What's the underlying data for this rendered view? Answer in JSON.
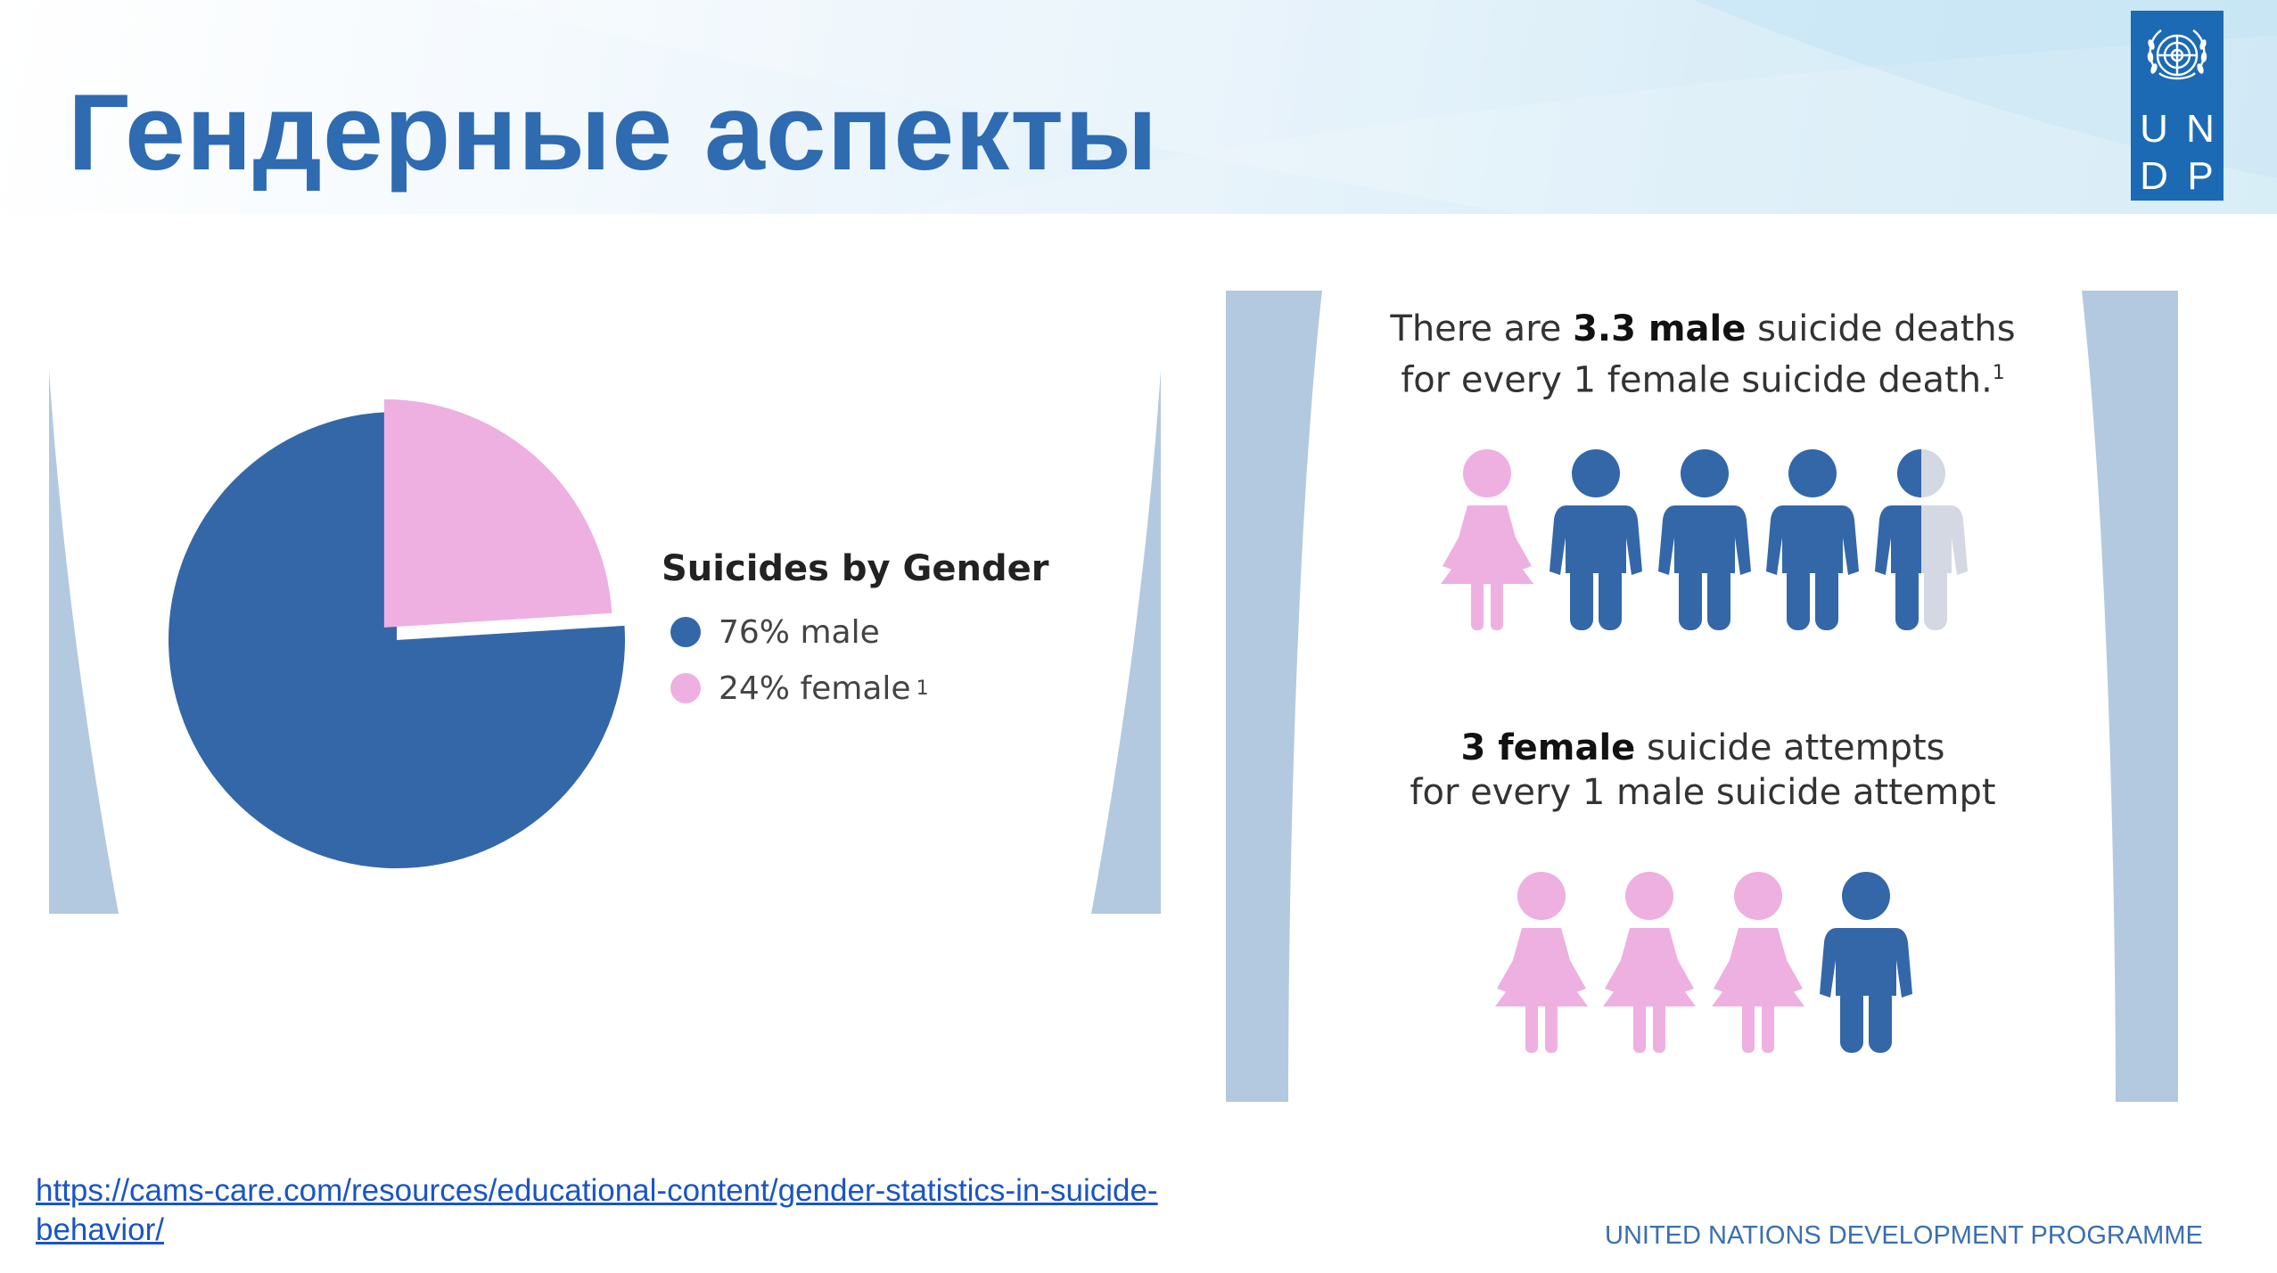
{
  "header": {
    "title": "Гендерные аспекты",
    "logo_letters": [
      "U",
      "N",
      "D",
      "P"
    ]
  },
  "colors": {
    "male": "#3467a8",
    "female": "#eeb0e0",
    "gray": "#d3d8e2",
    "frame": "#b3c9df",
    "title": "#2e6bb1",
    "brand": "#1c6ab3"
  },
  "chart_data": {
    "type": "pie",
    "title": "Suicides by Gender",
    "series": [
      {
        "name": "76% male",
        "value": 76,
        "color": "#3467a8"
      },
      {
        "name": "24% female",
        "value": 24,
        "color": "#eeb0e0"
      }
    ],
    "legend_note": "1"
  },
  "infographic": {
    "stat1": {
      "prefix": "There are ",
      "bold": "3.3 male",
      "suffix": " suicide deaths",
      "line2": "for every 1 female suicide death.",
      "note": "1"
    },
    "row1": [
      "female",
      "male",
      "male",
      "male",
      "partial-male"
    ],
    "stat2": {
      "bold": "3 female",
      "suffix": " suicide attempts",
      "line2": "for every 1 male suicide attempt"
    },
    "row2": [
      "female",
      "female",
      "female",
      "male"
    ]
  },
  "source": {
    "url": "https://cams-care.com/resources/educational-content/gender-statistics-in-suicide-behavior/"
  },
  "footer": {
    "text": "UNITED NATIONS DEVELOPMENT PROGRAMME"
  }
}
